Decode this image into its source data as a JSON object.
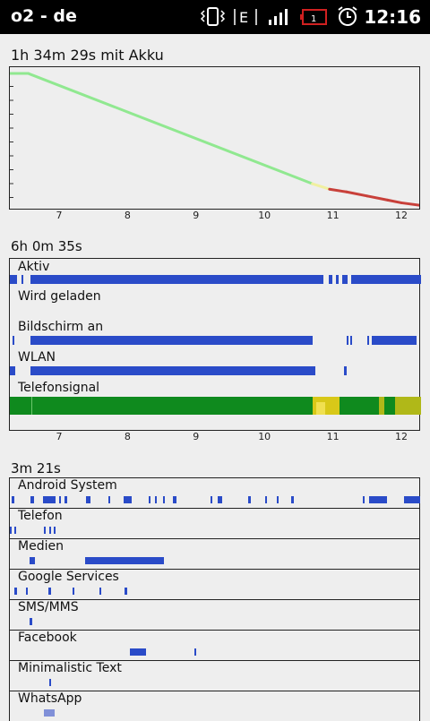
{
  "status_bar": {
    "carrier": "o2 - de",
    "time": "12:16",
    "network_letter": "E",
    "battery_level": "1",
    "icons": [
      "vibrate-icon",
      "network-type-icon",
      "signal-icon",
      "battery-icon",
      "alarm-icon"
    ]
  },
  "battery_history": {
    "title": "1h 34m 29s mit Akku",
    "x_ticks": [
      "7",
      "8",
      "9",
      "10",
      "11",
      "12"
    ]
  },
  "timeline": {
    "title": "6h 0m 35s",
    "rows": [
      "Aktiv",
      "Wird geladen",
      "Bildschirm an",
      "WLAN",
      "Telefonsignal"
    ],
    "x_ticks": [
      "7",
      "8",
      "9",
      "10",
      "11",
      "12"
    ]
  },
  "apps": {
    "title": "3m 21s",
    "items": [
      "Android System",
      "Telefon",
      "Medien",
      "Google Services",
      "SMS/MMS",
      "Facebook",
      "Minimalistic Text",
      "WhatsApp"
    ]
  },
  "chart_data": {
    "type": "line",
    "title": "1h 34m 29s mit Akku",
    "xlabel": "",
    "ylabel": "",
    "x_range": [
      6.2,
      12.3
    ],
    "y_range": [
      0,
      100
    ],
    "series": [
      {
        "x": [
          6.2,
          6.55,
          10.7,
          10.95,
          11.2,
          11.5,
          11.8,
          12.0,
          12.3
        ],
        "values": [
          98,
          98,
          17,
          13,
          11,
          8,
          5,
          3,
          1
        ],
        "colors": {
          "high": "#90e890",
          "mid": "#f0f0a0",
          "low": "#c8403a"
        }
      }
    ],
    "grid": false
  }
}
